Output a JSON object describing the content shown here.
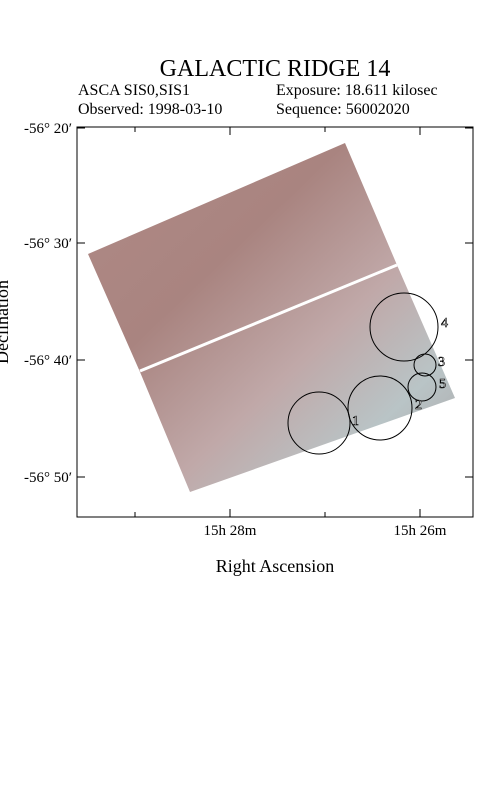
{
  "header": {
    "title": "GALACTIC RIDGE 14",
    "instrument": "ASCA SIS0,SIS1",
    "exposure": "Exposure: 18.611 kilosec",
    "observed": "Observed: 1998-03-10",
    "sequence": "Sequence: 56002020"
  },
  "axes": {
    "x_label": "Right Ascension",
    "y_label": "Declination",
    "x_ticks": [
      "15h 28m",
      "15h 26m"
    ],
    "y_ticks": [
      "-56° 20′",
      "-56° 30′",
      "-56° 40′",
      "-56° 50′"
    ]
  },
  "regions": [
    "1",
    "2",
    "3",
    "4",
    "5"
  ]
}
